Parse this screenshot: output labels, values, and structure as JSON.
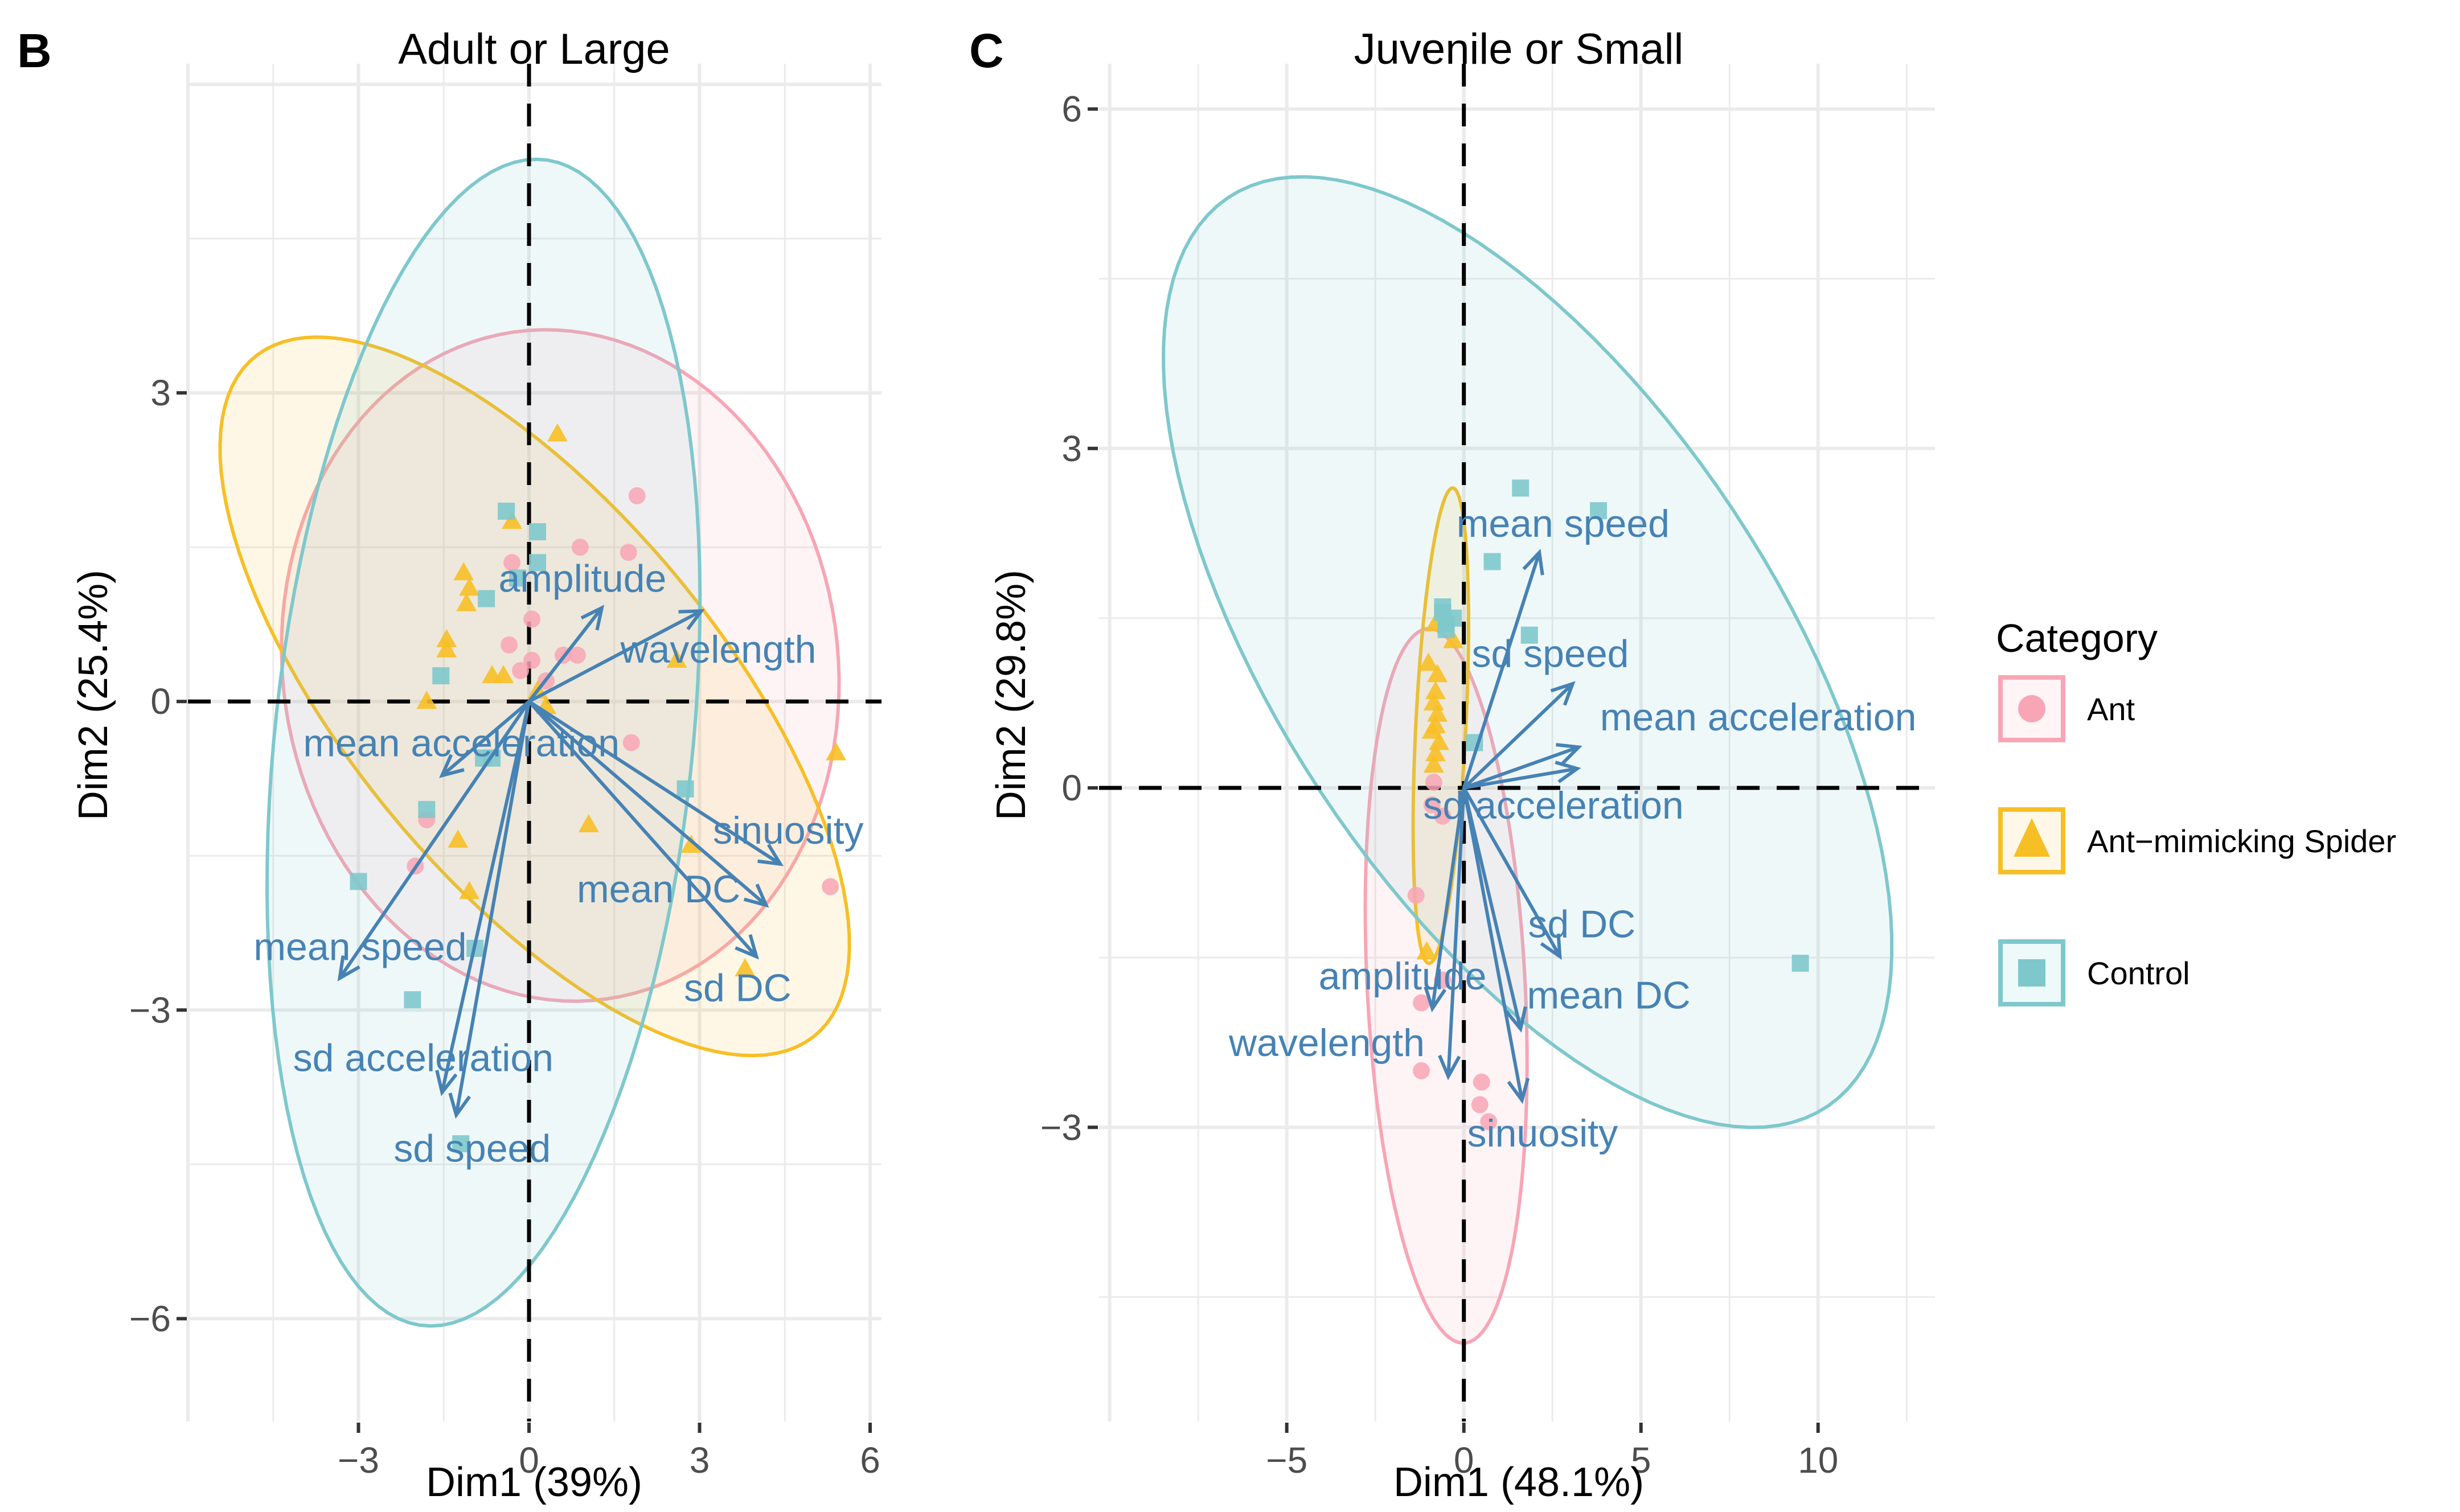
{
  "figure": {
    "legend": {
      "title": "Category",
      "position": "right",
      "items": [
        {
          "label": "Ant",
          "shape": "circle",
          "color": "#f8a5b5",
          "fill": "#fff4f6"
        },
        {
          "label": "Ant−mimicking Spider",
          "shape": "triangle",
          "color": "#f7bf26",
          "fill": "#fff8e8"
        },
        {
          "label": "Control",
          "shape": "square",
          "color": "#7ec8cc",
          "fill": "#eef9f9"
        }
      ]
    },
    "arrow_color": "#4682b4"
  },
  "chart_data": [
    {
      "type": "scatter",
      "panel_tag": "B",
      "title": "Adult or Large",
      "xlabel": "Dim1 (39%)",
      "ylabel": "Dim2 (25.4%)",
      "xlim": [
        -6.0,
        6.2
      ],
      "ylim": [
        -7.0,
        6.2
      ],
      "xticks": [
        -3,
        0,
        3,
        6
      ],
      "xtick_labels": [
        "−3",
        "0",
        "3",
        "6"
      ],
      "yticks": [
        -6,
        -3,
        0,
        3
      ],
      "ytick_labels": [
        "−6",
        "−3",
        "0",
        "3"
      ],
      "grid": true,
      "reference_lines": {
        "x": 0,
        "y": 0,
        "style": "dashed"
      },
      "series": [
        {
          "name": "Ant",
          "points": [
            [
              1.9,
              2.0
            ],
            [
              0.9,
              1.5
            ],
            [
              1.75,
              1.45
            ],
            [
              -0.3,
              1.35
            ],
            [
              0.05,
              0.8
            ],
            [
              -0.35,
              0.55
            ],
            [
              0.05,
              0.4
            ],
            [
              -0.15,
              0.3
            ],
            [
              0.6,
              0.45
            ],
            [
              0.85,
              0.45
            ],
            [
              1.8,
              -0.4
            ],
            [
              -1.8,
              -1.15
            ],
            [
              -2.0,
              -1.6
            ],
            [
              5.3,
              -1.8
            ],
            [
              0.3,
              0.2
            ]
          ]
        },
        {
          "name": "Ant−mimicking Spider",
          "points": [
            [
              0.5,
              2.6
            ],
            [
              -0.3,
              1.75
            ],
            [
              -1.15,
              1.25
            ],
            [
              -1.05,
              1.1
            ],
            [
              -1.1,
              0.95
            ],
            [
              -1.45,
              0.6
            ],
            [
              -1.45,
              0.5
            ],
            [
              -0.65,
              0.25
            ],
            [
              -0.45,
              0.25
            ],
            [
              -1.8,
              0.0
            ],
            [
              2.6,
              0.4
            ],
            [
              0.15,
              0.1
            ],
            [
              0.3,
              -0.05
            ],
            [
              5.4,
              -0.5
            ],
            [
              1.05,
              -1.2
            ],
            [
              2.85,
              -1.4
            ],
            [
              -1.25,
              -1.35
            ],
            [
              -1.05,
              -1.85
            ],
            [
              3.8,
              -2.6
            ]
          ]
        },
        {
          "name": "Control",
          "points": [
            [
              -0.4,
              1.85
            ],
            [
              0.15,
              1.65
            ],
            [
              0.15,
              1.35
            ],
            [
              -0.2,
              1.2
            ],
            [
              -0.75,
              1.0
            ],
            [
              -1.55,
              0.25
            ],
            [
              -0.8,
              -0.55
            ],
            [
              -0.65,
              -0.55
            ],
            [
              -1.8,
              -1.05
            ],
            [
              -3.0,
              -1.75
            ],
            [
              2.75,
              -0.85
            ],
            [
              -2.05,
              -2.9
            ],
            [
              -1.2,
              -4.3
            ],
            [
              -0.95,
              -2.4
            ]
          ]
        }
      ],
      "ellipses": [
        {
          "name": "Ant",
          "center": [
            0.55,
            0.35
          ],
          "a": [
            4.9,
            -0.3
          ],
          "b": [
            0.2,
            3.25
          ]
        },
        {
          "name": "Ant−mimicking Spider",
          "center": [
            0.1,
            0.05
          ],
          "a": [
            5.2,
            -1.4
          ],
          "b": [
            -1.9,
            3.2
          ]
        },
        {
          "name": "Control",
          "center": [
            -0.8,
            -0.4
          ],
          "a": [
            1.5,
            5.6
          ],
          "b": [
            -3.5,
            0.9
          ]
        }
      ],
      "variables": [
        {
          "name": "amplitude",
          "x": 1.28,
          "y": 0.91,
          "label_x": 0.94,
          "label_y": 1.2
        },
        {
          "name": "wavelength",
          "x": 3.03,
          "y": 0.88,
          "label_x": 3.33,
          "label_y": 0.51
        },
        {
          "name": "mean acceleration",
          "x": -1.53,
          "y": -0.72,
          "label_x": -1.19,
          "label_y": -0.4
        },
        {
          "name": "sinuosity",
          "x": 4.42,
          "y": -1.58,
          "label_x": 4.56,
          "label_y": -1.25
        },
        {
          "name": "mean DC",
          "x": 4.17,
          "y": -1.98,
          "label_x": 2.28,
          "label_y": -1.82
        },
        {
          "name": "sd DC",
          "x": 4.0,
          "y": -2.48,
          "label_x": 3.67,
          "label_y": -2.78
        },
        {
          "name": "mean speed",
          "x": -3.33,
          "y": -2.69,
          "label_x": -2.97,
          "label_y": -2.38
        },
        {
          "name": "sd acceleration",
          "x": -1.53,
          "y": -3.8,
          "label_x": -1.86,
          "label_y": -3.46
        },
        {
          "name": "sd speed",
          "x": -1.28,
          "y": -4.02,
          "label_x": -1.0,
          "label_y": -4.34
        }
      ]
    },
    {
      "type": "scatter",
      "panel_tag": "C",
      "title": "Juvenile or Small",
      "xlabel": "Dim1 (48.1%)",
      "ylabel": "Dim2 (29.8%)",
      "xlim": [
        -10.3,
        13.3
      ],
      "ylim": [
        -5.6,
        6.4
      ],
      "xticks": [
        -5,
        0,
        5,
        10
      ],
      "xtick_labels": [
        "−5",
        "0",
        "5",
        "10"
      ],
      "yticks": [
        -3,
        0,
        3,
        6
      ],
      "ytick_labels": [
        "−3",
        "0",
        "3",
        "6"
      ],
      "grid": true,
      "reference_lines": {
        "x": 0,
        "y": 0,
        "style": "dashed"
      },
      "series": [
        {
          "name": "Ant",
          "points": [
            [
              -0.85,
              0.05
            ],
            [
              -0.6,
              -0.25
            ],
            [
              -1.35,
              -0.95
            ],
            [
              -0.6,
              -1.7
            ],
            [
              -1.2,
              -1.9
            ],
            [
              -1.2,
              -2.5
            ],
            [
              0.5,
              -2.6
            ],
            [
              0.45,
              -2.8
            ],
            [
              0.7,
              -2.95
            ],
            [
              -0.9,
              -0.15
            ]
          ]
        },
        {
          "name": "Ant−mimicking Spider",
          "points": [
            [
              -0.8,
              1.45
            ],
            [
              -0.3,
              1.3
            ],
            [
              -1.0,
              1.1
            ],
            [
              -0.75,
              1.0
            ],
            [
              -0.8,
              0.85
            ],
            [
              -0.85,
              0.75
            ],
            [
              -0.75,
              0.65
            ],
            [
              -0.8,
              0.55
            ],
            [
              -0.9,
              0.5
            ],
            [
              -0.7,
              0.4
            ],
            [
              -0.8,
              0.3
            ],
            [
              -0.85,
              0.2
            ],
            [
              -1.05,
              -1.45
            ]
          ]
        },
        {
          "name": "Control",
          "points": [
            [
              1.6,
              2.65
            ],
            [
              3.8,
              2.45
            ],
            [
              0.8,
              2.0
            ],
            [
              -0.6,
              1.6
            ],
            [
              -0.5,
              1.45
            ],
            [
              -0.3,
              1.5
            ],
            [
              1.85,
              1.35
            ],
            [
              -0.6,
              1.55
            ],
            [
              0.3,
              0.4
            ],
            [
              9.5,
              -1.55
            ],
            [
              -0.5,
              1.4
            ]
          ]
        }
      ],
      "ellipses": [
        {
          "name": "Ant",
          "center": [
            -0.5,
            -1.75
          ],
          "a": [
            0.9,
            -3.1
          ],
          "b": [
            2.1,
            0.6
          ]
        },
        {
          "name": "Ant−mimicking Spider",
          "center": [
            -0.65,
            0.55
          ],
          "a": [
            0.35,
            2.1
          ],
          "b": [
            0.7,
            -0.05
          ]
        },
        {
          "name": "Control",
          "center": [
            1.8,
            1.2
          ],
          "a": [
            10.0,
            -3.3
          ],
          "b": [
            -2.4,
            -2.6
          ]
        }
      ],
      "variables": [
        {
          "name": "mean speed",
          "x": 2.13,
          "y": 2.08,
          "label_x": 2.8,
          "label_y": 2.34
        },
        {
          "name": "sd speed",
          "x": 3.07,
          "y": 0.92,
          "label_x": 2.44,
          "label_y": 1.19
        },
        {
          "name": "mean acceleration",
          "x": 3.24,
          "y": 0.36,
          "label_x": 8.31,
          "label_y": 0.63
        },
        {
          "name": "sd acceleration",
          "x": 3.2,
          "y": 0.17,
          "label_x": 2.53,
          "label_y": -0.15
        },
        {
          "name": "sd DC",
          "x": 2.71,
          "y": -1.49,
          "label_x": 3.33,
          "label_y": -1.2
        },
        {
          "name": "mean DC",
          "x": 1.6,
          "y": -2.13,
          "label_x": 4.09,
          "label_y": -1.83
        },
        {
          "name": "sinuosity",
          "x": 1.64,
          "y": -2.76,
          "label_x": 2.22,
          "label_y": -3.05
        },
        {
          "name": "amplitude",
          "x": -0.89,
          "y": -1.95,
          "label_x": -1.73,
          "label_y": -1.66
        },
        {
          "name": "wavelength",
          "x": -0.44,
          "y": -2.55,
          "label_x": -3.87,
          "label_y": -2.25
        }
      ]
    }
  ]
}
